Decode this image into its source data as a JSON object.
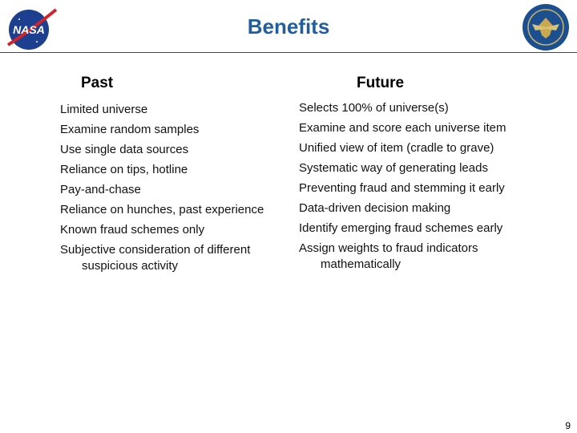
{
  "header": {
    "title": "Benefits",
    "left_logo": "NASA",
    "right_logo": "seal-icon"
  },
  "past": {
    "heading": "Past",
    "items": [
      {
        "line1": "Limited universe"
      },
      {
        "line1": "Examine random samples"
      },
      {
        "line1": "Use single data sources"
      },
      {
        "line1": "Reliance on tips, hotline"
      },
      {
        "line1": "Pay-and-chase"
      },
      {
        "line1": "Reliance on hunches, past experience"
      },
      {
        "line1": "Known fraud schemes only"
      },
      {
        "line1": "Subjective consideration of different",
        "line2": "suspicious activity"
      }
    ]
  },
  "future": {
    "heading": "Future",
    "items": [
      {
        "line1": "Selects 100% of universe(s)"
      },
      {
        "line1": "Examine and score each universe item"
      },
      {
        "line1": "Unified view of item (cradle to grave)"
      },
      {
        "line1": "Systematic way of generating leads"
      },
      {
        "line1": "Preventing fraud and stemming it early"
      },
      {
        "line1": "Data-driven decision making"
      },
      {
        "line1": "Identify emerging fraud schemes early"
      },
      {
        "line1": "Assign weights to fraud indicators",
        "line2": "mathematically"
      }
    ]
  },
  "footer": {
    "page_number": "9"
  },
  "colors": {
    "title": "#1f5fa0",
    "rule": "#8b2040"
  }
}
